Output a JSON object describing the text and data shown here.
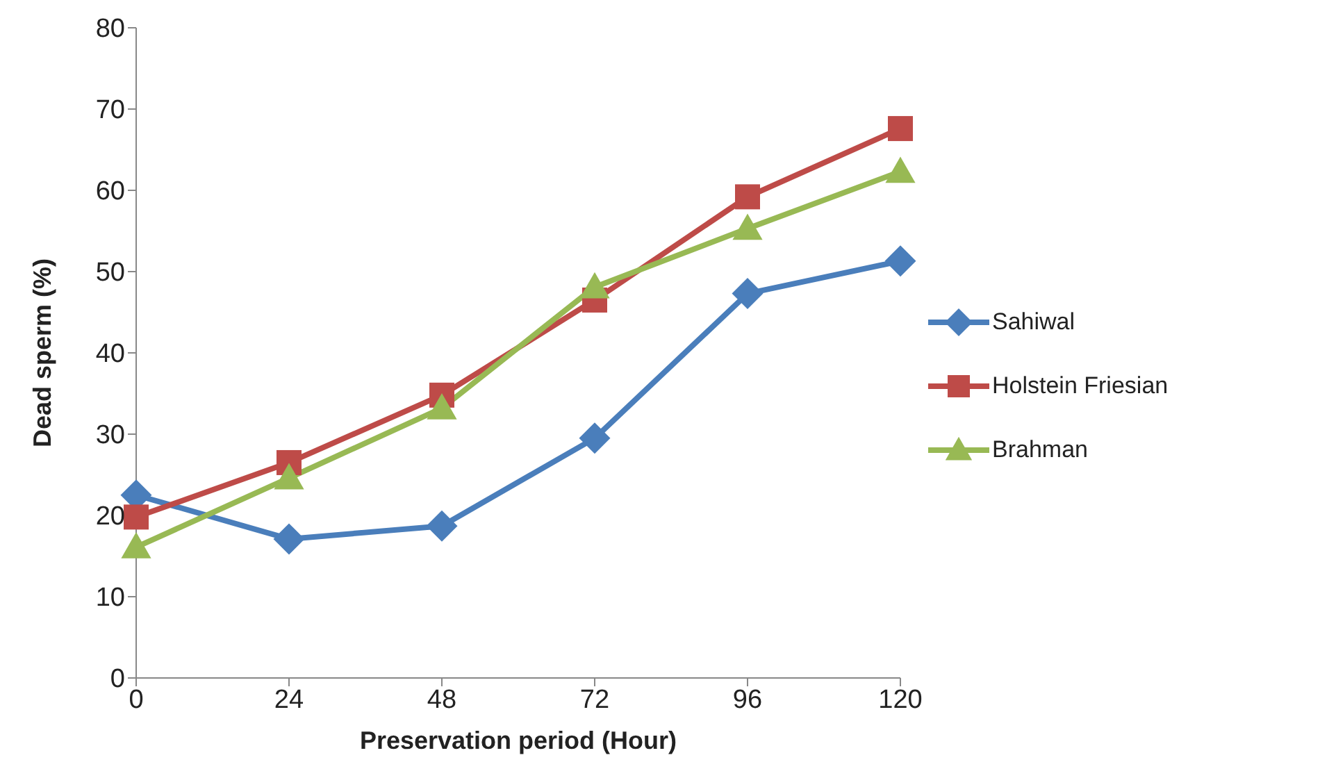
{
  "chart_data": {
    "type": "line",
    "xlabel": "Preservation period (Hour)",
    "ylabel": "Dead sperm (%)",
    "x": [
      0,
      24,
      48,
      72,
      96,
      120
    ],
    "xlim": [
      0,
      120
    ],
    "xticks": [
      0,
      24,
      48,
      72,
      96,
      120
    ],
    "ylim": [
      0,
      80
    ],
    "yticks": [
      0,
      10,
      20,
      30,
      40,
      50,
      60,
      70,
      80
    ],
    "grid": false,
    "legend": "right",
    "line_style": "solid",
    "series": [
      {
        "name": "Sahiwal",
        "color": "#4a7ebb",
        "marker": "diamond",
        "values": [
          22.5,
          17.1,
          18.7,
          29.5,
          47.3,
          51.3
        ]
      },
      {
        "name": "Holstein Friesian",
        "color": "#be4b48",
        "marker": "square",
        "values": [
          19.8,
          26.5,
          34.8,
          46.5,
          59.2,
          67.6
        ]
      },
      {
        "name": "Brahman",
        "color": "#98b954",
        "marker": "triangle",
        "values": [
          16.1,
          24.6,
          33.2,
          48.1,
          55.3,
          62.3
        ]
      }
    ]
  }
}
